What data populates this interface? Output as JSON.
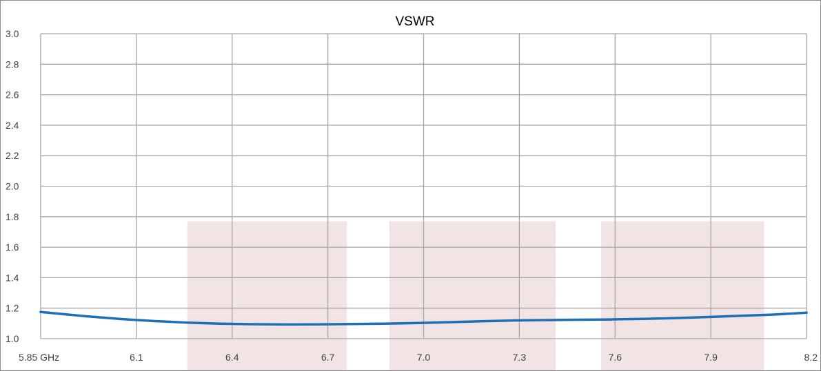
{
  "chart_data": {
    "type": "line",
    "title": "VSWR",
    "xlabel": "",
    "ylabel": "",
    "x_ticks": [
      "5.85 GHz",
      "6.1",
      "6.4",
      "6.7",
      "7.0",
      "7.3",
      "7.6",
      "7.9",
      "8.2"
    ],
    "y_ticks": [
      "1.0",
      "1.2",
      "1.4",
      "1.6",
      "1.8",
      "2.0",
      "2.2",
      "2.4",
      "2.6",
      "2.8",
      "3.0"
    ],
    "xlim": [
      5.85,
      8.2
    ],
    "ylim": [
      1.0,
      3.0
    ],
    "grid": true,
    "legend": "none",
    "highlight_bands": [
      {
        "x_start": 6.3,
        "x_end": 6.79,
        "y_top": 1.77
      },
      {
        "x_start": 6.92,
        "x_end": 7.43,
        "y_top": 1.77
      },
      {
        "x_start": 7.57,
        "x_end": 8.07,
        "y_top": 1.77
      }
    ],
    "series": [
      {
        "color": "#1f6fb5",
        "x": [
          5.85,
          5.9,
          6.0,
          6.1,
          6.2,
          6.3,
          6.4,
          6.5,
          6.6,
          6.7,
          6.8,
          6.9,
          7.0,
          7.1,
          7.2,
          7.3,
          7.4,
          7.5,
          7.6,
          7.7,
          7.8,
          7.9,
          8.0,
          8.1,
          8.2
        ],
        "y": [
          1.175,
          1.165,
          1.145,
          1.128,
          1.115,
          1.105,
          1.098,
          1.095,
          1.093,
          1.094,
          1.096,
          1.098,
          1.102,
          1.108,
          1.114,
          1.119,
          1.122,
          1.124,
          1.126,
          1.13,
          1.135,
          1.142,
          1.15,
          1.158,
          1.17
        ]
      }
    ]
  },
  "colors": {
    "grid": "#a6a6a6",
    "band": "#f2e4e4",
    "axis_text": "#404040",
    "border": "#8c8c8c"
  }
}
